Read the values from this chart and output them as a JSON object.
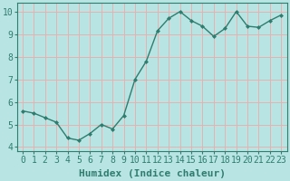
{
  "x": [
    0,
    1,
    2,
    3,
    4,
    5,
    6,
    7,
    8,
    9,
    10,
    11,
    12,
    13,
    14,
    15,
    16,
    17,
    18,
    19,
    20,
    21,
    22,
    23
  ],
  "y": [
    5.6,
    5.5,
    5.3,
    5.1,
    4.4,
    4.3,
    4.6,
    5.0,
    4.8,
    5.4,
    7.0,
    7.8,
    9.15,
    9.7,
    10.0,
    9.6,
    9.35,
    8.9,
    9.25,
    10.0,
    9.35,
    9.3,
    9.6,
    9.85
  ],
  "xlabel": "Humidex (Indice chaleur)",
  "ylabel": "",
  "line_color": "#2e7d6e",
  "marker": "D",
  "marker_size": 2,
  "background_color": "#b8e4e4",
  "grid_color": "#e8b0b0",
  "tick_color": "#2e7d6e",
  "label_color": "#2e7d6e",
  "ylim": [
    3.8,
    10.4
  ],
  "xlim": [
    -0.5,
    23.5
  ],
  "yticks": [
    4,
    5,
    6,
    7,
    8,
    9,
    10
  ],
  "xticks": [
    0,
    1,
    2,
    3,
    4,
    5,
    6,
    7,
    8,
    9,
    10,
    11,
    12,
    13,
    14,
    15,
    16,
    17,
    18,
    19,
    20,
    21,
    22,
    23
  ],
  "xlabel_fontsize": 8,
  "tick_fontsize": 7,
  "line_width": 1.0
}
